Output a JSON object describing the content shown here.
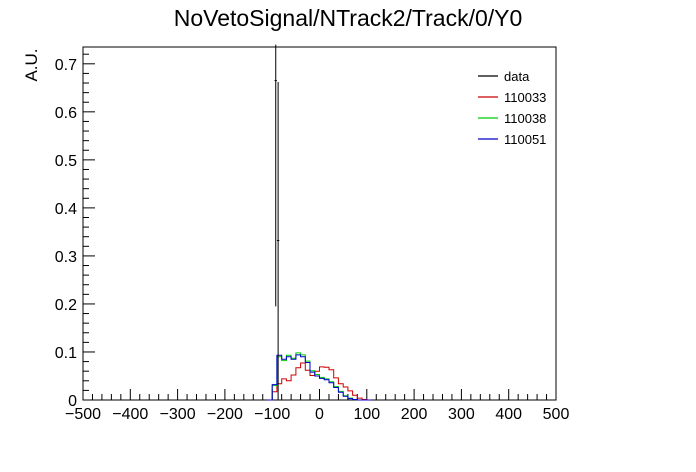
{
  "chart_data": {
    "type": "histogram",
    "title": "NoVetoSignal/NTrack2/Track/0/Y0",
    "xlabel": "",
    "ylabel": "A.U.",
    "xlim": [
      -500,
      500
    ],
    "ylim": [
      0,
      0.735
    ],
    "xticks": [
      -500,
      -400,
      -300,
      -200,
      -100,
      0,
      100,
      200,
      300,
      400,
      500
    ],
    "yticks": [
      0,
      0.1,
      0.2,
      0.3,
      0.4,
      0.5,
      0.6,
      0.7
    ],
    "ytick_labels": [
      "0",
      "0.1",
      "0.2",
      "0.3",
      "0.4",
      "0.5",
      "0.6",
      "0.7"
    ],
    "bin_edges_start": -110,
    "bin_width": 10,
    "legend_position": "top-right",
    "data_points": [
      {
        "x": -92.5,
        "y": 0.665,
        "yerr_low": 0.47,
        "yerr_high": 0.075,
        "xerr": 2.5
      },
      {
        "x": -87.5,
        "y": 0.332,
        "yerr_low": 0.332,
        "yerr_high": 0.33,
        "xerr": 2.5
      }
    ],
    "series": [
      {
        "name": "data",
        "color": "#000000",
        "kind": "points"
      },
      {
        "name": "110033",
        "color": "#cc0000",
        "kind": "step",
        "values": [
          0,
          0.017,
          0.034,
          0.044,
          0.04,
          0.052,
          0.067,
          0.077,
          0.062,
          0.051,
          0.06,
          0.069,
          0.068,
          0.063,
          0.046,
          0.034,
          0.027,
          0.019,
          0.01,
          0.004,
          0.001,
          0
        ]
      },
      {
        "name": "110038",
        "color": "#00cc00",
        "kind": "step",
        "values": [
          0,
          0.03,
          0.09,
          0.082,
          0.093,
          0.087,
          0.098,
          0.094,
          0.081,
          0.061,
          0.053,
          0.047,
          0.044,
          0.038,
          0.028,
          0.018,
          0.009,
          0.004,
          0.001,
          0,
          0,
          0
        ]
      },
      {
        "name": "110051",
        "color": "#0000cc",
        "kind": "step",
        "values": [
          0,
          0.032,
          0.093,
          0.085,
          0.09,
          0.085,
          0.094,
          0.09,
          0.078,
          0.058,
          0.05,
          0.045,
          0.042,
          0.036,
          0.026,
          0.016,
          0.008,
          0.003,
          0.001,
          0,
          0,
          0
        ]
      }
    ]
  }
}
